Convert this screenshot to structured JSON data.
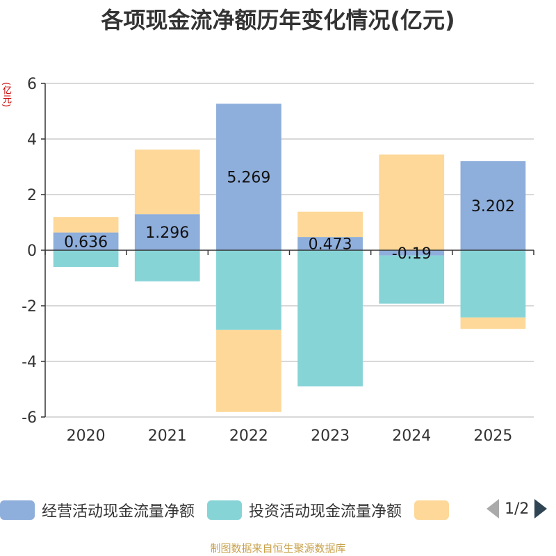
{
  "title": "各项现金流净额历年变化情况(亿元)",
  "y_unit": "(亿元)",
  "legend": {
    "items": [
      {
        "label": "经营活动现金流量净额",
        "color": "#8eaedb"
      },
      {
        "label": "投资活动现金流量净额",
        "color": "#87d4d7"
      },
      {
        "label": "",
        "color": "#fdd899"
      }
    ],
    "page": "1/2"
  },
  "source": "制图数据来自恒生聚源数据库",
  "chart_data": {
    "type": "bar",
    "stacked": true,
    "categories": [
      "2020",
      "2021",
      "2022",
      "2023",
      "2024",
      "2025"
    ],
    "ylim": [
      -6,
      6
    ],
    "yticks": [
      -6,
      -4,
      -2,
      0,
      2,
      4,
      6
    ],
    "grid": true,
    "series": [
      {
        "name": "经营活动现金流量净额",
        "color": "#8eaedb",
        "values": [
          0.636,
          1.296,
          5.269,
          0.473,
          -0.19,
          3.202
        ],
        "labels": [
          "0.636",
          "1.296",
          "5.269",
          "0.473",
          "-0.19",
          "3.202"
        ]
      },
      {
        "name": "投资活动现金流量净额",
        "color": "#87d4d7",
        "values": [
          -0.6,
          -1.12,
          -2.87,
          -4.9,
          -1.73,
          -2.42
        ],
        "labels": []
      },
      {
        "name": "",
        "color": "#fdd899",
        "values": [
          0.56,
          2.32,
          -2.95,
          0.91,
          3.44,
          -0.41
        ],
        "labels": []
      }
    ]
  }
}
